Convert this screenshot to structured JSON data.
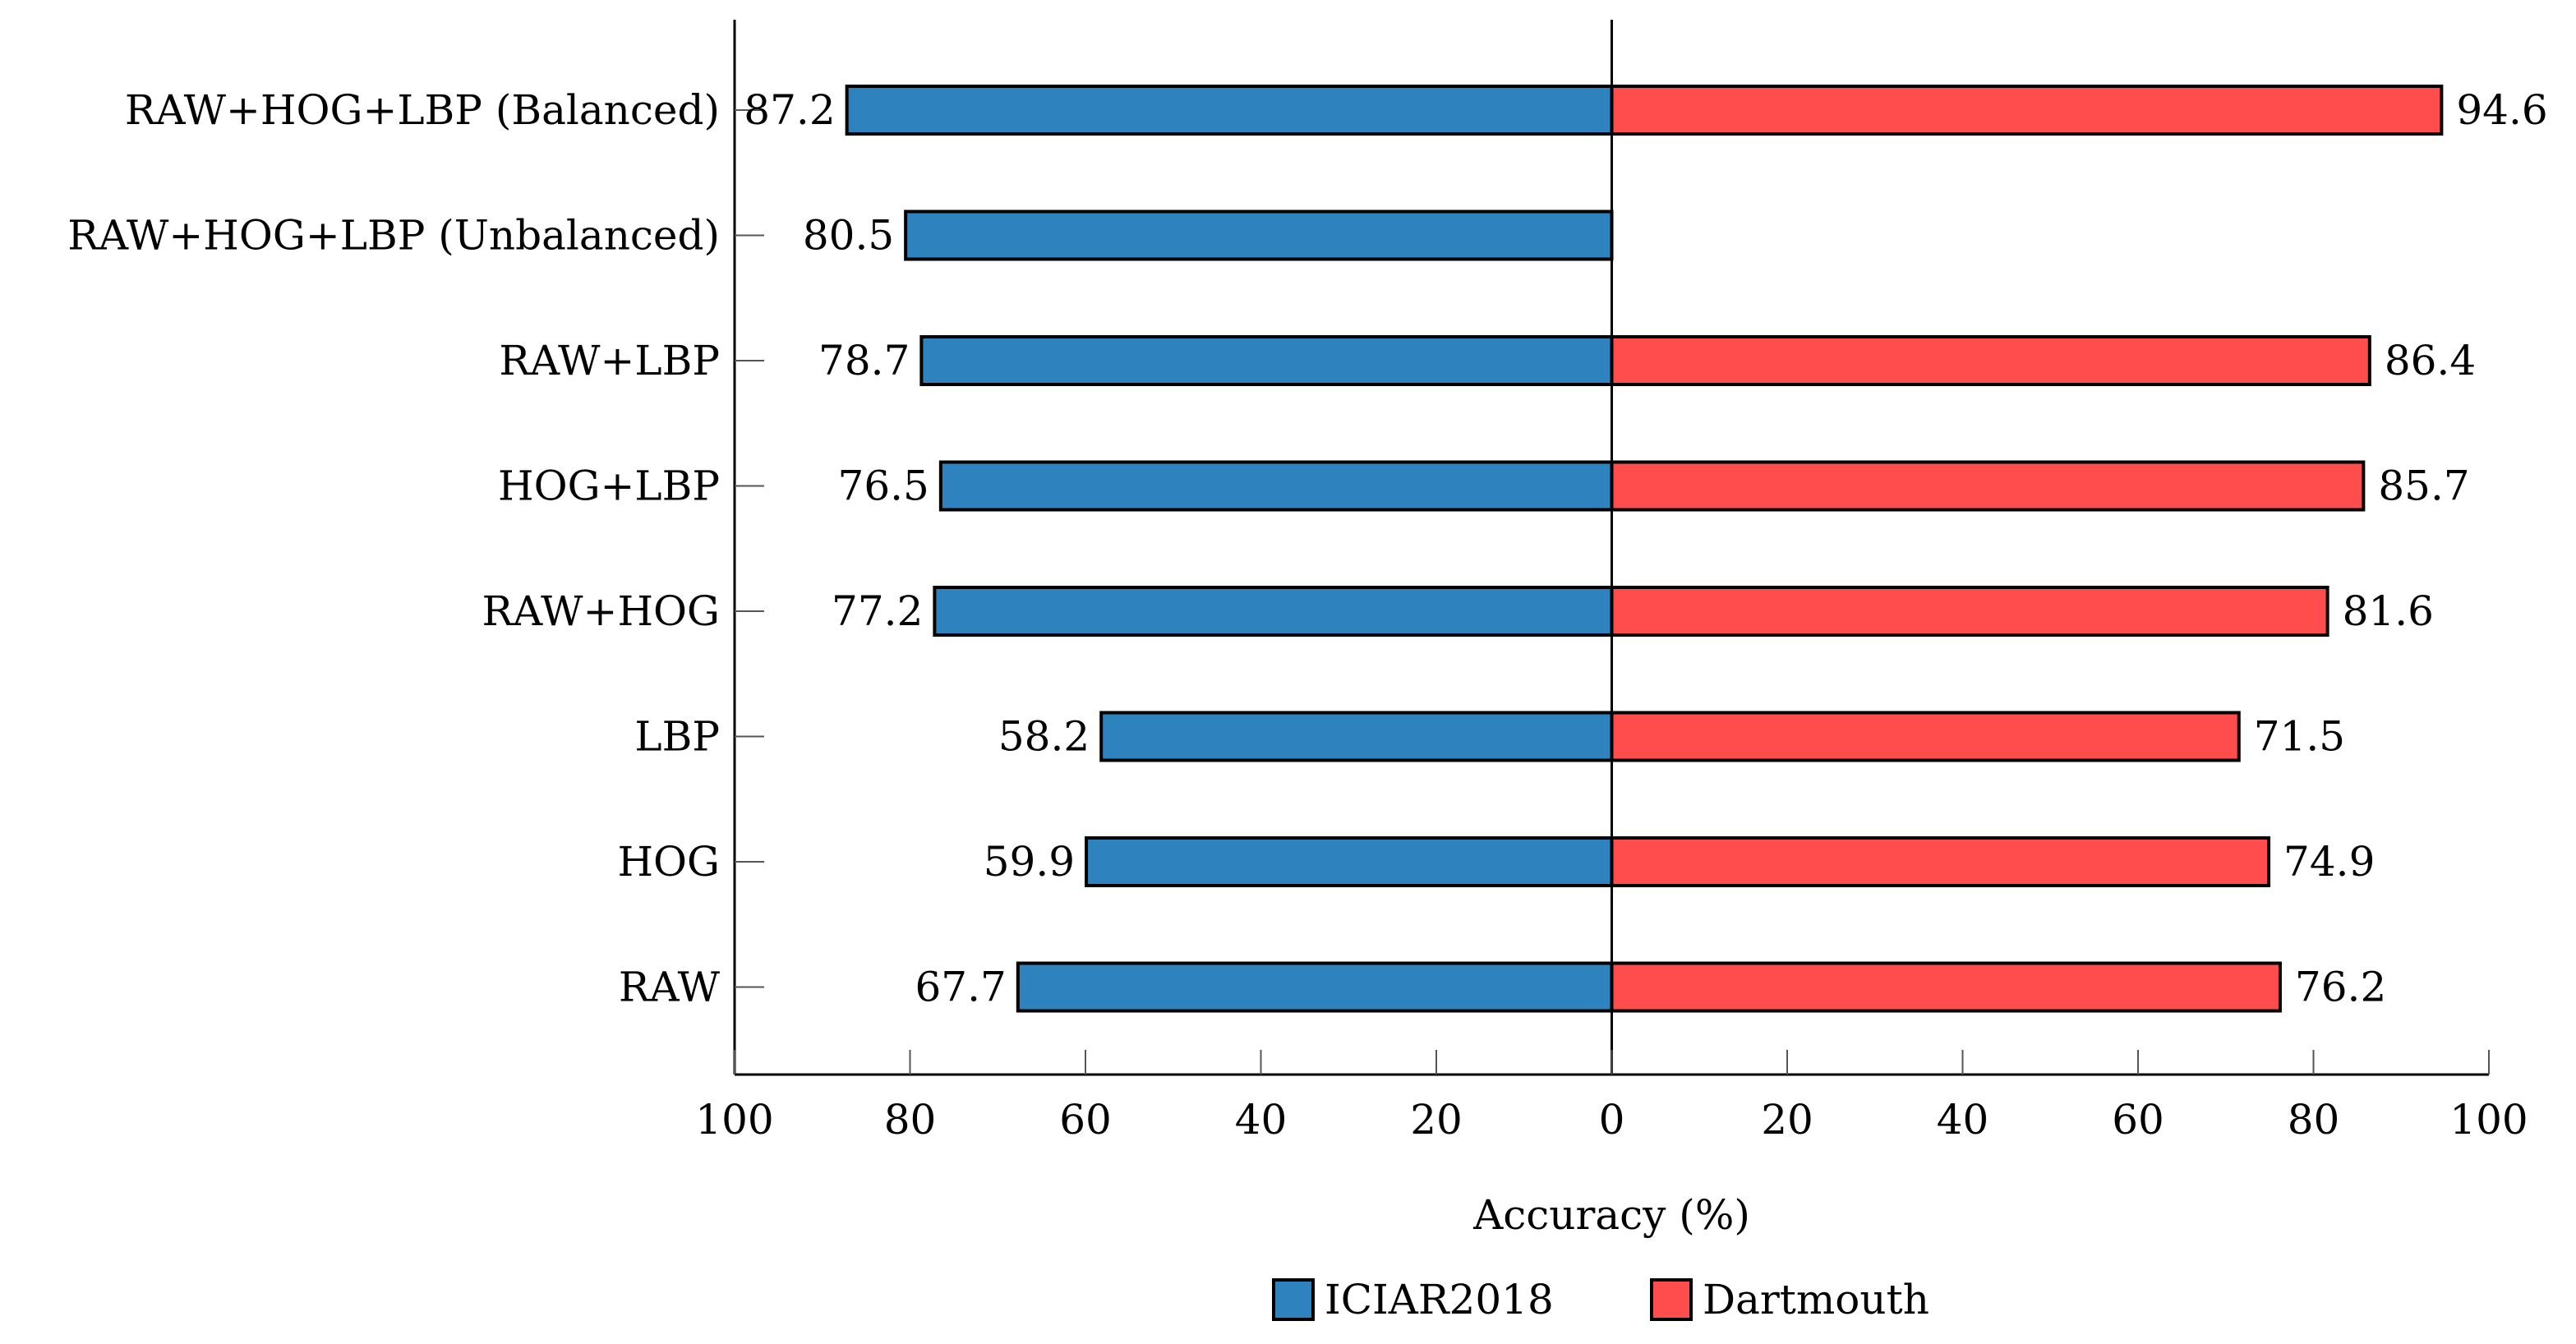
{
  "chart_data": {
    "type": "bar",
    "orientation": "horizontal",
    "layout": "diverging",
    "categories": [
      "RAW",
      "HOG",
      "LBP",
      "RAW+HOG",
      "HOG+LBP",
      "RAW+LBP",
      "RAW+HOG+LBP (Unbalanced)",
      "RAW+HOG+LBP (Balanced)"
    ],
    "series": [
      {
        "name": "ICIAR2018",
        "color": "#2e82be",
        "direction": "left",
        "values": [
          67.7,
          59.9,
          58.2,
          77.2,
          76.5,
          78.7,
          80.5,
          87.2
        ],
        "labels": [
          "67.7",
          "59.9",
          "58.2",
          "77.2",
          "76.5",
          "78.7",
          "80.5",
          "87.2"
        ]
      },
      {
        "name": "Dartmouth",
        "color": "#ff4d4d",
        "direction": "right",
        "values": [
          76.2,
          74.9,
          71.5,
          81.6,
          85.7,
          86.4,
          null,
          94.6
        ],
        "labels": [
          "76.2",
          "74.9",
          "71.5",
          "81.6",
          "85.7",
          "86.4",
          null,
          "94.6"
        ]
      }
    ],
    "xlabel": "Accuracy (%)",
    "ylabel": "",
    "xlim": [
      -100,
      100
    ],
    "xticks": [
      -100,
      -80,
      -60,
      -40,
      -20,
      0,
      20,
      40,
      60,
      80,
      100
    ],
    "xtick_labels": [
      "100",
      "80",
      "60",
      "40",
      "20",
      "0",
      "20",
      "40",
      "60",
      "80",
      "100"
    ],
    "grid": false,
    "legend_position": "bottom"
  }
}
